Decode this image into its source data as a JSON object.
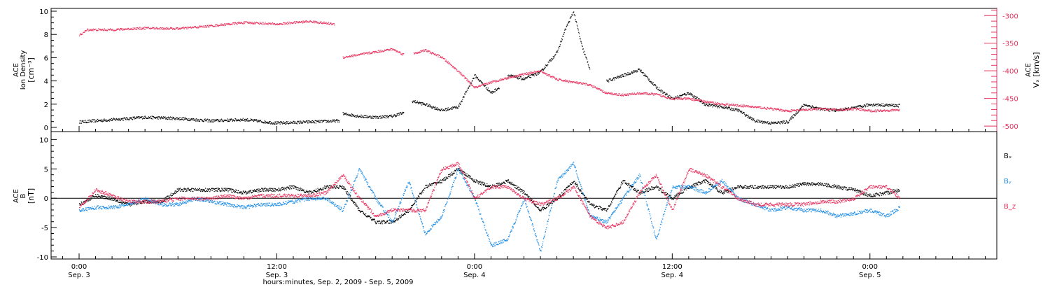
{
  "chart_data": [
    {
      "type": "scatter",
      "panel": "top",
      "ylabel_left": [
        "ACE",
        "Ion Density",
        "[cm⁻³]"
      ],
      "ylabel_right": [
        "ACE",
        "Vₓ [km/s]"
      ],
      "ylim_left": [
        0,
        10
      ],
      "yticks_left": [
        "0",
        "2",
        "4",
        "6",
        "8",
        "10"
      ],
      "ylim_right": [
        -510,
        -287
      ],
      "yticks_right": [
        "-500",
        "-450",
        "-400",
        "-350",
        "-300"
      ],
      "series": [
        {
          "color": "#000000",
          "axis": "left",
          "segments": [
            {
              "x": [
                0,
                2,
                4,
                6,
                8,
                10,
                12,
                14,
                15.8
              ],
              "y": [
                0.5,
                0.7,
                0.9,
                0.8,
                0.6,
                0.7,
                0.4,
                0.5,
                0.6
              ]
            },
            {
              "x": [
                16,
                17,
                18,
                19,
                19.7
              ],
              "y": [
                1.2,
                1.0,
                0.9,
                1.0,
                1.3
              ]
            },
            {
              "x": [
                20.2,
                21,
                22,
                23,
                24,
                25,
                25.5
              ],
              "y": [
                2.3,
                2.0,
                1.5,
                1.8,
                4.5,
                3.0,
                3.5
              ]
            },
            {
              "x": [
                26,
                27,
                28,
                29,
                29.5,
                30,
                30.5,
                31
              ],
              "y": [
                4.5,
                4.2,
                4.8,
                6.5,
                8.5,
                10.0,
                7.0,
                5.0
              ]
            },
            {
              "x": [
                32,
                33,
                34,
                35,
                36,
                37,
                38,
                39,
                40,
                41,
                42,
                43,
                44,
                45,
                46,
                47,
                48,
                49.8
              ],
              "y": [
                4.0,
                4.5,
                5.0,
                3.5,
                2.5,
                3.0,
                2.0,
                1.8,
                1.5,
                0.6,
                0.4,
                0.5,
                2.0,
                1.6,
                1.5,
                1.7,
                2.0,
                1.9
              ]
            }
          ]
        },
        {
          "color": "#e8335f",
          "axis": "right",
          "segments": [
            {
              "x": [
                0,
                0.5,
                2,
                4,
                6,
                8,
                10,
                11,
                12,
                13,
                14,
                15.5
              ],
              "y": [
                -335,
                -325,
                -325,
                -322,
                -323,
                -318,
                -312,
                -313,
                -315,
                -312,
                -310,
                -315
              ]
            },
            {
              "x": [
                16,
                17,
                18,
                19,
                19.7
              ],
              "y": [
                -375,
                -370,
                -365,
                -360,
                -370
              ]
            },
            {
              "x": [
                20.3,
                21,
                22,
                23,
                24,
                25,
                26,
                27,
                28,
                29,
                30,
                31,
                32,
                33,
                34,
                35,
                36,
                37,
                38,
                39,
                40,
                41,
                42,
                43,
                44,
                45,
                46,
                47,
                48,
                49.8
              ],
              "y": [
                -368,
                -362,
                -375,
                -400,
                -430,
                -420,
                -412,
                -405,
                -400,
                -415,
                -420,
                -425,
                -440,
                -443,
                -440,
                -442,
                -450,
                -450,
                -455,
                -460,
                -462,
                -465,
                -468,
                -472,
                -470,
                -468,
                -470,
                -468,
                -472,
                -470
              ]
            }
          ]
        }
      ]
    },
    {
      "type": "scatter",
      "panel": "bottom",
      "ylabel": [
        "ACE",
        "B",
        "[nT]"
      ],
      "ylim": [
        -10,
        11
      ],
      "yticks": [
        "-10",
        "-5",
        "0",
        "5",
        "10"
      ],
      "legend": [
        {
          "label": "Bₓ",
          "color": "#000000"
        },
        {
          "label": "Bᵧ",
          "color": "#1f8ee6"
        },
        {
          "label": "B_z",
          "color": "#e8335f"
        }
      ],
      "legend_display": [
        "Bx",
        "By",
        "Bz"
      ],
      "series": [
        {
          "color": "#000000",
          "x": [
            0,
            1,
            2,
            3,
            4,
            5,
            6,
            7,
            8,
            9,
            10,
            11,
            12,
            13,
            14,
            15,
            16,
            17,
            18,
            19,
            20,
            21,
            22,
            23,
            24,
            25,
            26,
            27,
            28,
            29,
            30,
            31,
            32,
            33,
            34,
            35,
            36,
            37,
            38,
            39,
            40,
            41,
            42,
            43,
            44,
            45,
            46,
            47,
            48,
            49,
            49.8
          ],
          "y": [
            -1,
            0.5,
            0,
            -1,
            -0.5,
            -0.5,
            1.5,
            1.5,
            1.5,
            1.5,
            1,
            1.5,
            1.5,
            2,
            1,
            2,
            2,
            -2,
            -4,
            -4,
            -2,
            2,
            3,
            5,
            3,
            2,
            3,
            1,
            -2,
            0,
            3,
            -1,
            -2,
            3,
            1,
            2,
            0,
            2,
            3,
            1,
            2,
            2,
            2,
            2,
            2.5,
            2.5,
            2,
            1.5,
            0.5,
            1,
            1.5
          ]
        },
        {
          "color": "#1f8ee6",
          "x": [
            0,
            1,
            2,
            3,
            4,
            5,
            6,
            7,
            8,
            9,
            10,
            11,
            12,
            13,
            14,
            15,
            16,
            17,
            18,
            19,
            20,
            21,
            22,
            23,
            24,
            25,
            26,
            27,
            28,
            29,
            30,
            31,
            32,
            33,
            34,
            35,
            36,
            37,
            38,
            39,
            40,
            41,
            42,
            43,
            44,
            45,
            46,
            47,
            48,
            49,
            49.8
          ],
          "y": [
            -2,
            -1.5,
            -1.5,
            -1,
            0,
            -1,
            -1,
            0,
            -0.5,
            -1,
            -1.5,
            -1,
            -1,
            -0.5,
            0,
            0,
            -2,
            5,
            0,
            -4,
            3,
            -6,
            -3,
            5,
            0,
            -8,
            -7,
            0,
            -9,
            3,
            6,
            -3,
            -4,
            0,
            4,
            -7,
            2,
            2,
            1,
            3,
            0,
            -1,
            -2,
            -1.5,
            -2,
            -2,
            -3,
            -2.5,
            -2,
            -3,
            -1.5
          ]
        },
        {
          "color": "#e8335f",
          "x": [
            0,
            1,
            2,
            3,
            4,
            5,
            6,
            7,
            8,
            9,
            10,
            11,
            12,
            13,
            14,
            15,
            16,
            17,
            18,
            19,
            20,
            21,
            22,
            23,
            24,
            25,
            26,
            27,
            28,
            29,
            30,
            31,
            32,
            33,
            34,
            35,
            36,
            37,
            38,
            39,
            40,
            41,
            42,
            43,
            44,
            45,
            46,
            47,
            48,
            49,
            49.8
          ],
          "y": [
            -1.5,
            1.5,
            0.5,
            -0.5,
            -0.5,
            -0.5,
            0,
            0,
            0,
            0.5,
            0,
            0.5,
            0.5,
            0.5,
            0.5,
            1,
            4,
            0,
            -3,
            -2,
            -2,
            -2,
            5,
            6,
            0,
            2,
            2,
            0,
            -1,
            0,
            2,
            -3,
            -5,
            -4,
            1,
            4,
            -2,
            5,
            4,
            2,
            0,
            -1,
            -1,
            -1,
            -1,
            -0.5,
            -0.5,
            0,
            2,
            2,
            0
          ]
        }
      ]
    }
  ],
  "x_axis": {
    "xlim": [
      -1.7,
      55.7
    ],
    "ticks": [
      {
        "x": 0,
        "time": "0:00",
        "day": "Sep. 3"
      },
      {
        "x": 12,
        "time": "12:00",
        "day": "Sep. 3"
      },
      {
        "x": 24,
        "time": "0:00",
        "day": "Sep. 4"
      },
      {
        "x": 36,
        "time": "12:00",
        "day": "Sep. 4"
      },
      {
        "x": 48,
        "time": "0:00",
        "day": "Sep. 5"
      }
    ],
    "xlabel": "hours:minutes, Sep.  2, 2009 - Sep.  5, 2009"
  },
  "colors": {
    "black": "#000000",
    "pink": "#e8335f",
    "blue": "#1f8ee6"
  }
}
